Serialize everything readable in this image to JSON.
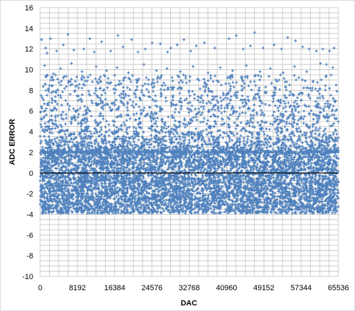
{
  "chart_data": {
    "type": "scatter",
    "title": "",
    "xlabel": "DAC",
    "ylabel": "ADC ERROR",
    "xlim": [
      0,
      65536
    ],
    "ylim": [
      -10,
      16
    ],
    "xticks": [
      0,
      8192,
      16384,
      24576,
      32768,
      40960,
      49152,
      57344,
      65536
    ],
    "yticks": [
      -10,
      -8,
      -6,
      -4,
      -2,
      0,
      2,
      4,
      6,
      8,
      10,
      12,
      14,
      16
    ],
    "grid": true,
    "legend": "none",
    "marker": "plus",
    "colors": {
      "series": "#4f81bd",
      "zero_line": "#000000",
      "grid": "#bfbfbf"
    },
    "series": [
      {
        "points": [
          [
            300,
            12.9
          ],
          [
            1200,
            12.1
          ],
          [
            1500,
            11.6
          ],
          [
            2300,
            13.0
          ],
          [
            3600,
            11.8
          ],
          [
            5100,
            12.4
          ],
          [
            6100,
            13.4
          ],
          [
            7400,
            11.9
          ],
          [
            9600,
            12.0
          ],
          [
            10900,
            13.0
          ],
          [
            11900,
            11.7
          ],
          [
            13500,
            12.7
          ],
          [
            15500,
            11.8
          ],
          [
            17100,
            13.3
          ],
          [
            18200,
            12.2
          ],
          [
            20100,
            12.9
          ],
          [
            21500,
            11.7
          ],
          [
            23100,
            12.0
          ],
          [
            24600,
            12.6
          ],
          [
            26400,
            12.5
          ],
          [
            28000,
            11.7
          ],
          [
            28700,
            12.1
          ],
          [
            30100,
            12.4
          ],
          [
            31600,
            12.9
          ],
          [
            33100,
            11.8
          ],
          [
            34300,
            12.3
          ],
          [
            36100,
            12.6
          ],
          [
            38400,
            12.1
          ],
          [
            41500,
            13.0
          ],
          [
            43100,
            13.3
          ],
          [
            44600,
            12.0
          ],
          [
            46200,
            12.3
          ],
          [
            47100,
            13.6
          ],
          [
            49000,
            12.1
          ],
          [
            51400,
            12.4
          ],
          [
            53000,
            12.0
          ],
          [
            54400,
            13.1
          ],
          [
            56100,
            12.8
          ],
          [
            57700,
            12.2
          ],
          [
            59100,
            12.0
          ],
          [
            60700,
            11.8
          ],
          [
            62100,
            12.0
          ],
          [
            63600,
            11.8
          ],
          [
            64600,
            12.1
          ],
          [
            1000,
            10.4
          ],
          [
            2900,
            9.6
          ],
          [
            4500,
            10.1
          ],
          [
            6900,
            10.6
          ],
          [
            9200,
            9.8
          ],
          [
            12300,
            10.3
          ],
          [
            14600,
            9.9
          ],
          [
            16900,
            10.2
          ],
          [
            19400,
            9.7
          ],
          [
            22800,
            10.5
          ],
          [
            25600,
            9.9
          ],
          [
            27900,
            10.1
          ],
          [
            30800,
            9.8
          ],
          [
            33600,
            10.3
          ],
          [
            36900,
            9.7
          ],
          [
            39600,
            10.2
          ],
          [
            42300,
            9.9
          ],
          [
            45300,
            10.4
          ],
          [
            48300,
            9.8
          ],
          [
            50600,
            10.1
          ],
          [
            53400,
            9.7
          ],
          [
            55900,
            10.3
          ],
          [
            58600,
            9.8
          ],
          [
            61600,
            10.6
          ],
          [
            62900,
            10.5
          ],
          [
            64300,
            10.2
          ]
        ],
        "band": {
          "x_range": [
            0,
            65536
          ],
          "dense_range": [
            -3.4,
            2.0
          ],
          "upper_tail_max": 9.5,
          "lower_min": -3.9
        }
      }
    ],
    "reference_lines": [
      {
        "axis": "y",
        "value": 0
      }
    ]
  }
}
